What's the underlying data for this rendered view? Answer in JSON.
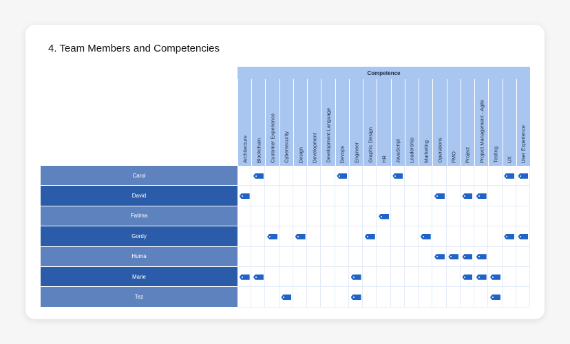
{
  "title": "4. Team Members and Competencies",
  "competence_header": "Competence",
  "competencies": [
    "Architecture",
    "Blockchain",
    "Customer Experience",
    "Cybersecurity",
    "Design",
    "Development",
    "Development Language",
    "Devops",
    "Engineer",
    "Graphic Design",
    "HR",
    "JavaScript",
    "Leadership",
    "Marketing",
    "Operations",
    "PMO",
    "Project",
    "Project Management - Agile",
    "Testing",
    "UX",
    "User Experience"
  ],
  "members": [
    {
      "name": "Carol",
      "style": "light",
      "tags": [
        1,
        7,
        11,
        19,
        20
      ]
    },
    {
      "name": "David",
      "style": "dark",
      "tags": [
        0,
        14,
        16,
        17
      ]
    },
    {
      "name": "Fatima",
      "style": "light",
      "tags": [
        10
      ]
    },
    {
      "name": "Gordy",
      "style": "dark",
      "tags": [
        2,
        4,
        9,
        13,
        19,
        20
      ]
    },
    {
      "name": "Huma",
      "style": "light",
      "tags": [
        14,
        15,
        16,
        17
      ]
    },
    {
      "name": "Marie",
      "style": "dark",
      "tags": [
        0,
        1,
        8,
        16,
        17,
        18
      ]
    },
    {
      "name": "Tez",
      "style": "light",
      "tags": [
        3,
        8,
        18
      ]
    }
  ],
  "colors": {
    "row_light": "#5e82be",
    "row_dark": "#2a5ca9",
    "tag": "#1f63c6",
    "header": "#a9c6f0"
  },
  "icons": {
    "tag": "tag-icon"
  }
}
